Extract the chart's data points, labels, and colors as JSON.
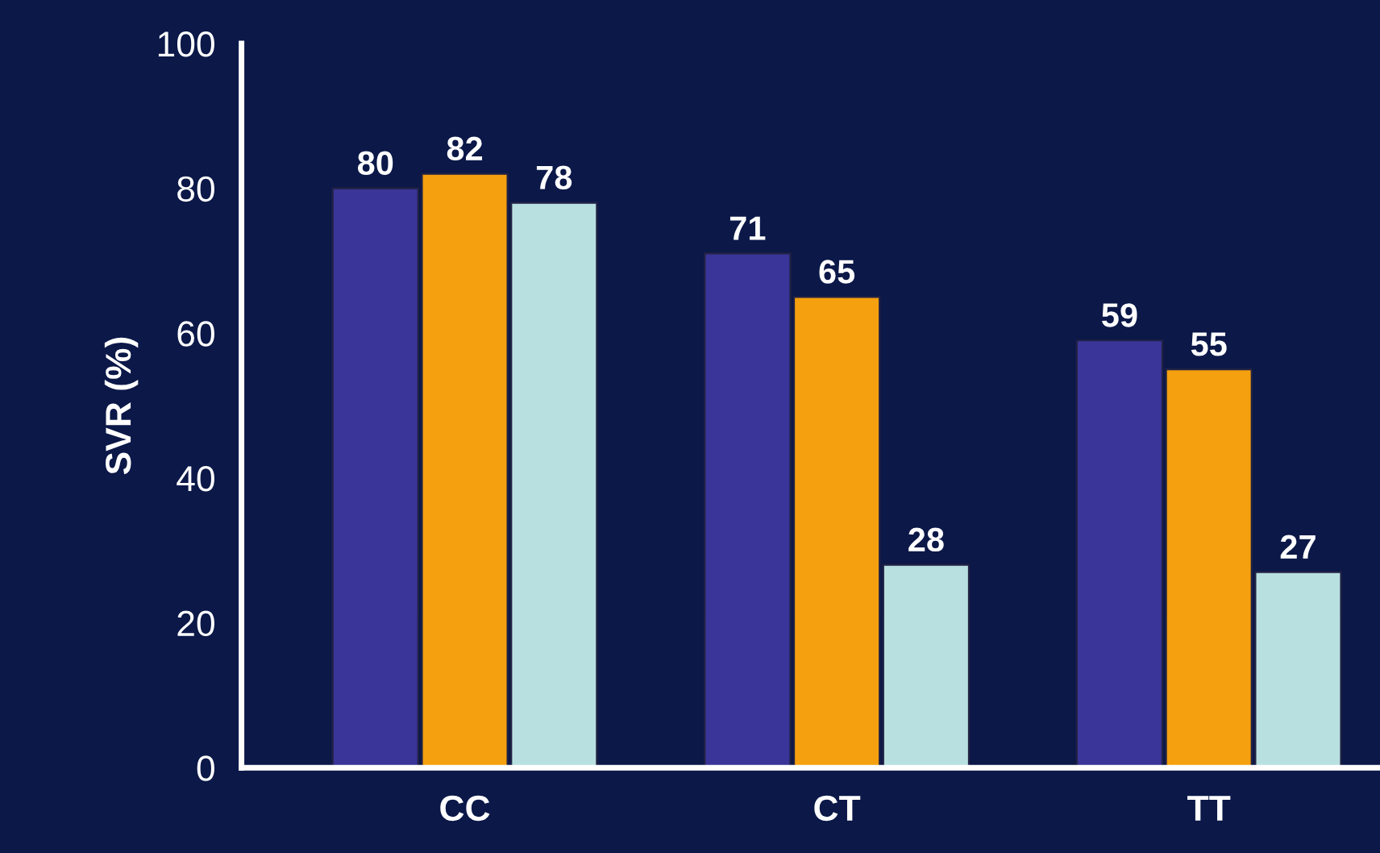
{
  "chart_data": {
    "type": "bar",
    "ylabel": "SVR (%)",
    "categories": [
      "CC",
      "CT",
      "TT"
    ],
    "series": [
      {
        "color": "#3a3598",
        "values": [
          80,
          71,
          59
        ]
      },
      {
        "color": "#f5a00f",
        "values": [
          82,
          65,
          55
        ]
      },
      {
        "color": "#b8e0e0",
        "values": [
          78,
          28,
          27
        ]
      }
    ],
    "ylim": [
      0,
      100
    ],
    "yticks": [
      0,
      20,
      40,
      60,
      80,
      100
    ],
    "data_labels": true,
    "grid": false,
    "legend": false
  }
}
